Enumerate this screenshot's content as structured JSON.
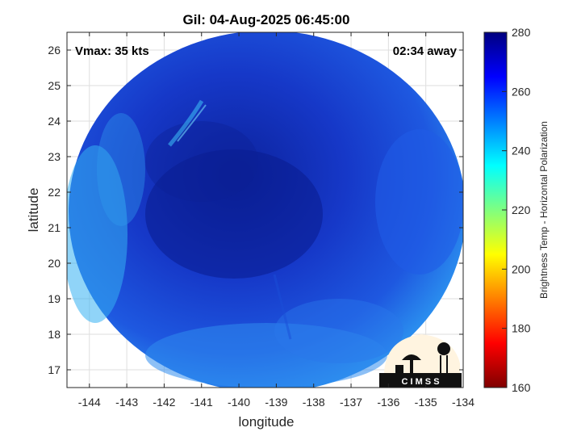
{
  "title": "Gil: 04-Aug-2025 06:45:00",
  "vmax_label": "Vmax: 35 kts",
  "time_label": "02:34 away",
  "xlabel": "longitude",
  "ylabel": "latitude",
  "x_ticks": [
    "-144",
    "-143",
    "-142",
    "-141",
    "-140",
    "-139",
    "-138",
    "-137",
    "-136",
    "-135",
    "-134"
  ],
  "y_ticks": [
    "17",
    "18",
    "19",
    "20",
    "21",
    "22",
    "23",
    "24",
    "25",
    "26"
  ],
  "xlim": [
    -144.6,
    -134
  ],
  "ylim": [
    16.5,
    26.5
  ],
  "colorbar": {
    "label": "Brightness Temp - Horizontal Polarization",
    "ticks": [
      "160",
      "180",
      "200",
      "220",
      "240",
      "260",
      "280"
    ],
    "range": [
      160,
      280
    ],
    "colors": [
      "#7f0000",
      "#ff0000",
      "#ffff00",
      "#00ffff",
      "#0000ff",
      "#00007f"
    ]
  },
  "logo_text": "C I M S S",
  "colors": {
    "field_main": "#1a48d8",
    "field_edge": "#2aa0f0",
    "field_core": "#0c22a0"
  }
}
